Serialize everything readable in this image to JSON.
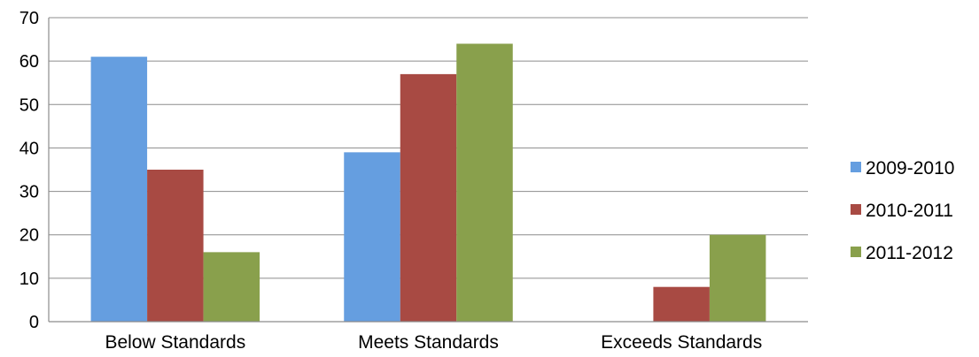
{
  "chart_data": {
    "type": "bar",
    "title": "",
    "xlabel": "",
    "ylabel": "",
    "categories": [
      "Below Standards",
      "Meets Standards",
      "Exceeds Standards"
    ],
    "series": [
      {
        "name": "2009-2010",
        "values": [
          61,
          39,
          0
        ],
        "color": "#659ee0"
      },
      {
        "name": "2010-2011",
        "values": [
          35,
          57,
          8
        ],
        "color": "#a84a43"
      },
      {
        "name": "2011-2012",
        "values": [
          16,
          64,
          20
        ],
        "color": "#89a04c"
      }
    ],
    "ylim": [
      0,
      70
    ],
    "yticks": [
      0,
      10,
      20,
      30,
      40,
      50,
      60,
      70
    ],
    "grid": true,
    "legend_position": "right"
  }
}
